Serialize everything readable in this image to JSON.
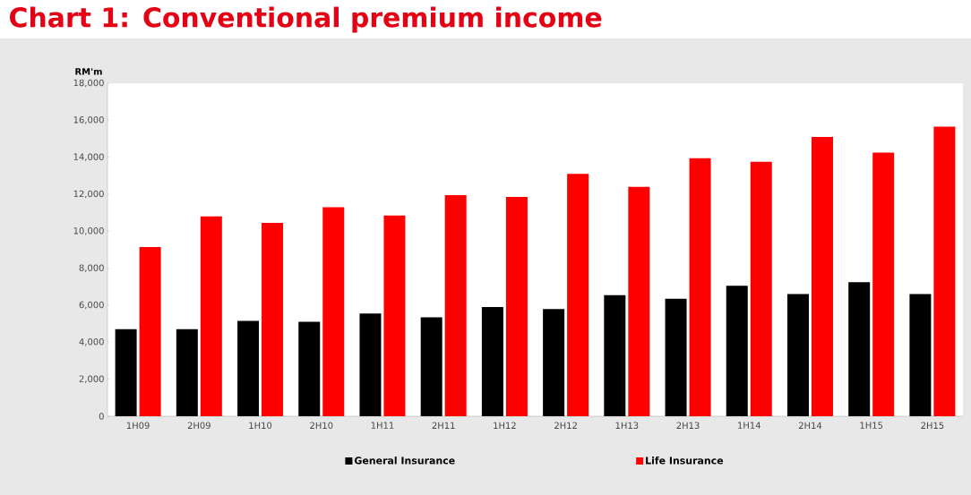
{
  "chart_data": {
    "type": "bar",
    "title": "Chart 1: Conventional premium income",
    "ylabel": "RM'm",
    "categories": [
      "1H09",
      "2H09",
      "1H10",
      "2H10",
      "1H11",
      "2H11",
      "1H12",
      "2H12",
      "1H13",
      "2H13",
      "1H14",
      "2H14",
      "1H15",
      "2H15"
    ],
    "series": [
      {
        "name": "General Insurance",
        "color": "#000000",
        "values": [
          4700,
          4700,
          5150,
          5100,
          5550,
          5350,
          5900,
          5800,
          6550,
          6350,
          7050,
          6600,
          7250,
          6600
        ]
      },
      {
        "name": "Life Insurance",
        "color": "#ff0000",
        "values": [
          9150,
          10800,
          10450,
          11300,
          10850,
          11950,
          11850,
          13100,
          12400,
          13950,
          13750,
          15100,
          14250,
          15650
        ]
      }
    ],
    "ylim": [
      0,
      18000
    ],
    "yticks": [
      0,
      {
        "value": 2000,
        "label": "2,000"
      },
      {
        "value": 4000,
        "label": "4,000"
      },
      {
        "value": 6000,
        "label": "6,000"
      },
      {
        "value": 8000,
        "label": "8,000"
      },
      {
        "value": 10000,
        "label": "10,000"
      },
      {
        "value": 12000,
        "label": "12,000"
      },
      {
        "value": 14000,
        "label": "14,000"
      },
      {
        "value": 16000,
        "label": "16,000"
      },
      {
        "value": 18000,
        "label": "18,000"
      }
    ],
    "legend": "bottom"
  }
}
